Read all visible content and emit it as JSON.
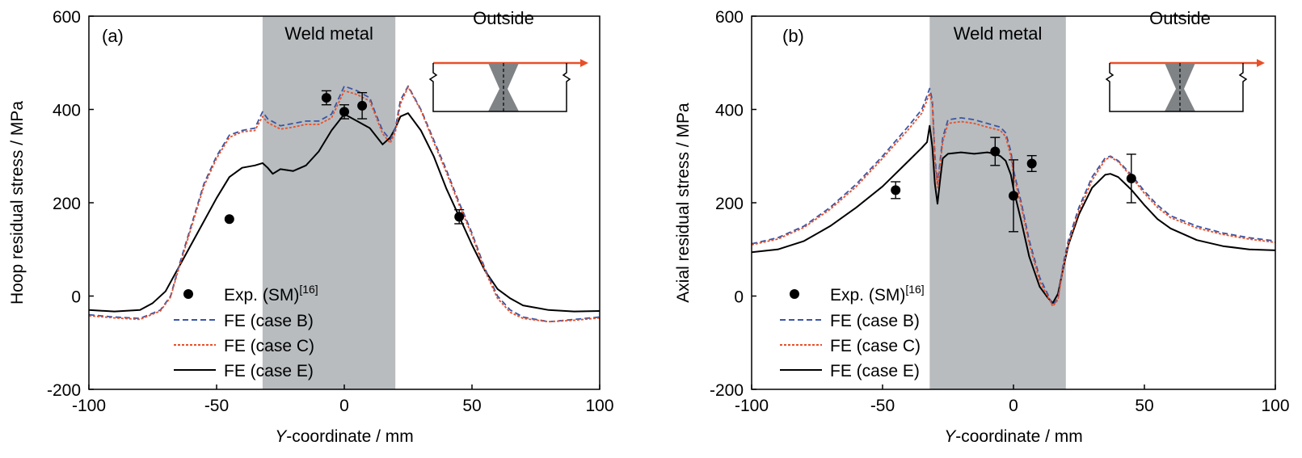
{
  "chart_data": [
    {
      "type": "line",
      "panel_label": "(a)",
      "ylabel": "Hoop residual stress / MPa",
      "xlabel_italic": "Y",
      "xlabel_rest": "-coordinate / mm",
      "xlim": [
        -100,
        100
      ],
      "ylim": [
        -200,
        600
      ],
      "xticks": [
        -100,
        -50,
        0,
        50,
        100
      ],
      "yticks": [
        -200,
        0,
        200,
        400,
        600
      ],
      "weld_region": {
        "label": "Weld metal",
        "x": [
          -32,
          20
        ]
      },
      "inset_label": "Outside",
      "legend": {
        "exp": "Exp. (SM)",
        "exp_ref": "[16]",
        "caseB": "FE (case B)",
        "caseC": "FE (case C)",
        "caseE": "FE (case E)"
      },
      "colors": {
        "caseB": "#3a55a4",
        "caseC": "#e8502a",
        "caseE": "#000000",
        "weld": "#b8bcbf"
      },
      "exp_points": [
        {
          "x": -45,
          "y": 165,
          "err": 0
        },
        {
          "x": -7,
          "y": 425,
          "err": 15
        },
        {
          "x": 0,
          "y": 395,
          "err": 15
        },
        {
          "x": 7,
          "y": 408,
          "err": 28
        },
        {
          "x": 45,
          "y": 170,
          "err": 15
        }
      ],
      "series": [
        {
          "name": "FE (case B)",
          "points": [
            [
              -100,
              -40
            ],
            [
              -90,
              -45
            ],
            [
              -80,
              -48
            ],
            [
              -72,
              -30
            ],
            [
              -68,
              0
            ],
            [
              -65,
              60
            ],
            [
              -60,
              150
            ],
            [
              -55,
              240
            ],
            [
              -50,
              300
            ],
            [
              -45,
              345
            ],
            [
              -40,
              355
            ],
            [
              -35,
              360
            ],
            [
              -32,
              395
            ],
            [
              -30,
              380
            ],
            [
              -25,
              365
            ],
            [
              -20,
              370
            ],
            [
              -15,
              375
            ],
            [
              -10,
              375
            ],
            [
              -5,
              390
            ],
            [
              0,
              450
            ],
            [
              5,
              440
            ],
            [
              10,
              425
            ],
            [
              12,
              395
            ],
            [
              15,
              355
            ],
            [
              18,
              335
            ],
            [
              20,
              360
            ],
            [
              22,
              420
            ],
            [
              25,
              450
            ],
            [
              30,
              400
            ],
            [
              35,
              335
            ],
            [
              40,
              270
            ],
            [
              45,
              200
            ],
            [
              50,
              135
            ],
            [
              55,
              60
            ],
            [
              60,
              0
            ],
            [
              65,
              -30
            ],
            [
              70,
              -45
            ],
            [
              80,
              -55
            ],
            [
              90,
              -50
            ],
            [
              100,
              -45
            ]
          ]
        },
        {
          "name": "FE (case C)",
          "points": [
            [
              -100,
              -42
            ],
            [
              -90,
              -47
            ],
            [
              -80,
              -50
            ],
            [
              -72,
              -32
            ],
            [
              -68,
              -2
            ],
            [
              -65,
              55
            ],
            [
              -60,
              145
            ],
            [
              -55,
              235
            ],
            [
              -50,
              295
            ],
            [
              -45,
              340
            ],
            [
              -40,
              352
            ],
            [
              -35,
              355
            ],
            [
              -32,
              385
            ],
            [
              -30,
              372
            ],
            [
              -25,
              358
            ],
            [
              -20,
              362
            ],
            [
              -15,
              368
            ],
            [
              -10,
              368
            ],
            [
              -5,
              382
            ],
            [
              0,
              440
            ],
            [
              5,
              432
            ],
            [
              10,
              418
            ],
            [
              12,
              390
            ],
            [
              15,
              348
            ],
            [
              18,
              328
            ],
            [
              20,
              352
            ],
            [
              22,
              412
            ],
            [
              25,
              448
            ],
            [
              30,
              398
            ],
            [
              35,
              330
            ],
            [
              40,
              265
            ],
            [
              45,
              195
            ],
            [
              50,
              130
            ],
            [
              55,
              55
            ],
            [
              60,
              -5
            ],
            [
              65,
              -35
            ],
            [
              70,
              -48
            ],
            [
              80,
              -55
            ],
            [
              90,
              -52
            ],
            [
              100,
              -47
            ]
          ]
        },
        {
          "name": "FE (case E)",
          "points": [
            [
              -100,
              -30
            ],
            [
              -90,
              -33
            ],
            [
              -80,
              -30
            ],
            [
              -75,
              -15
            ],
            [
              -70,
              10
            ],
            [
              -65,
              60
            ],
            [
              -60,
              110
            ],
            [
              -55,
              160
            ],
            [
              -50,
              210
            ],
            [
              -45,
              255
            ],
            [
              -40,
              275
            ],
            [
              -35,
              280
            ],
            [
              -32,
              285
            ],
            [
              -30,
              275
            ],
            [
              -28,
              262
            ],
            [
              -25,
              272
            ],
            [
              -20,
              268
            ],
            [
              -15,
              280
            ],
            [
              -10,
              310
            ],
            [
              -5,
              355
            ],
            [
              0,
              390
            ],
            [
              5,
              375
            ],
            [
              10,
              360
            ],
            [
              15,
              325
            ],
            [
              18,
              340
            ],
            [
              20,
              360
            ],
            [
              22,
              385
            ],
            [
              25,
              392
            ],
            [
              30,
              355
            ],
            [
              35,
              300
            ],
            [
              40,
              230
            ],
            [
              45,
              170
            ],
            [
              50,
              110
            ],
            [
              55,
              55
            ],
            [
              60,
              15
            ],
            [
              65,
              -5
            ],
            [
              70,
              -20
            ],
            [
              80,
              -30
            ],
            [
              90,
              -33
            ],
            [
              100,
              -32
            ]
          ]
        }
      ]
    },
    {
      "type": "line",
      "panel_label": "(b)",
      "ylabel": "Axial residual stress / MPa",
      "xlabel_italic": "Y",
      "xlabel_rest": "-coordinate / mm",
      "xlim": [
        -100,
        100
      ],
      "ylim": [
        -200,
        600
      ],
      "xticks": [
        -100,
        -50,
        0,
        50,
        100
      ],
      "yticks": [
        -200,
        0,
        200,
        400,
        600
      ],
      "weld_region": {
        "label": "Weld metal",
        "x": [
          -32,
          20
        ]
      },
      "inset_label": "Outside",
      "legend": {
        "exp": "Exp. (SM)",
        "exp_ref": "[16]",
        "caseB": "FE (case B)",
        "caseC": "FE (case C)",
        "caseE": "FE (case E)"
      },
      "colors": {
        "caseB": "#3a55a4",
        "caseC": "#e8502a",
        "caseE": "#000000",
        "weld": "#b8bcbf"
      },
      "exp_points": [
        {
          "x": -45,
          "y": 227,
          "err": 18
        },
        {
          "x": -7,
          "y": 310,
          "err": 30
        },
        {
          "x": 0,
          "y": 215,
          "err": 77
        },
        {
          "x": 7,
          "y": 284,
          "err": 17
        },
        {
          "x": 45,
          "y": 252,
          "err": 52
        }
      ],
      "series": [
        {
          "name": "FE (case B)",
          "points": [
            [
              -100,
              112
            ],
            [
              -90,
              125
            ],
            [
              -80,
              150
            ],
            [
              -70,
              190
            ],
            [
              -60,
              240
            ],
            [
              -50,
              300
            ],
            [
              -40,
              365
            ],
            [
              -35,
              400
            ],
            [
              -33,
              430
            ],
            [
              -32,
              445
            ],
            [
              -31,
              420
            ],
            [
              -30,
              300
            ],
            [
              -29,
              240
            ],
            [
              -27,
              340
            ],
            [
              -25,
              378
            ],
            [
              -20,
              382
            ],
            [
              -15,
              378
            ],
            [
              -10,
              370
            ],
            [
              -5,
              362
            ],
            [
              -3,
              350
            ],
            [
              -1,
              310
            ],
            [
              0,
              270
            ],
            [
              3,
              200
            ],
            [
              6,
              120
            ],
            [
              10,
              40
            ],
            [
              13,
              5
            ],
            [
              15,
              -20
            ],
            [
              17,
              -5
            ],
            [
              19,
              70
            ],
            [
              21,
              120
            ],
            [
              25,
              190
            ],
            [
              30,
              255
            ],
            [
              35,
              296
            ],
            [
              37,
              300
            ],
            [
              40,
              290
            ],
            [
              45,
              260
            ],
            [
              50,
              225
            ],
            [
              55,
              195
            ],
            [
              60,
              172
            ],
            [
              70,
              150
            ],
            [
              80,
              135
            ],
            [
              90,
              125
            ],
            [
              100,
              118
            ]
          ]
        },
        {
          "name": "FE (case C)",
          "points": [
            [
              -100,
              110
            ],
            [
              -90,
              122
            ],
            [
              -80,
              147
            ],
            [
              -70,
              186
            ],
            [
              -60,
              235
            ],
            [
              -50,
              295
            ],
            [
              -40,
              358
            ],
            [
              -35,
              392
            ],
            [
              -33,
              420
            ],
            [
              -32,
              435
            ],
            [
              -31,
              410
            ],
            [
              -30,
              290
            ],
            [
              -29,
              232
            ],
            [
              -27,
              330
            ],
            [
              -25,
              370
            ],
            [
              -20,
              374
            ],
            [
              -15,
              370
            ],
            [
              -10,
              362
            ],
            [
              -5,
              355
            ],
            [
              -3,
              342
            ],
            [
              -1,
              300
            ],
            [
              0,
              262
            ],
            [
              3,
              192
            ],
            [
              6,
              112
            ],
            [
              10,
              32
            ],
            [
              13,
              0
            ],
            [
              15,
              -22
            ],
            [
              17,
              -8
            ],
            [
              19,
              62
            ],
            [
              21,
              112
            ],
            [
              25,
              182
            ],
            [
              30,
              248
            ],
            [
              35,
              292
            ],
            [
              37,
              298
            ],
            [
              40,
              288
            ],
            [
              45,
              256
            ],
            [
              50,
              220
            ],
            [
              55,
              190
            ],
            [
              60,
              168
            ],
            [
              70,
              146
            ],
            [
              80,
              132
            ],
            [
              90,
              122
            ],
            [
              100,
              115
            ]
          ]
        },
        {
          "name": "FE (case E)",
          "points": [
            [
              -100,
              94
            ],
            [
              -90,
              100
            ],
            [
              -80,
              118
            ],
            [
              -70,
              150
            ],
            [
              -60,
              190
            ],
            [
              -50,
              235
            ],
            [
              -40,
              290
            ],
            [
              -35,
              318
            ],
            [
              -33,
              330
            ],
            [
              -32,
              365
            ],
            [
              -31,
              320
            ],
            [
              -30,
              240
            ],
            [
              -29,
              198
            ],
            [
              -28,
              250
            ],
            [
              -27,
              295
            ],
            [
              -25,
              305
            ],
            [
              -20,
              308
            ],
            [
              -15,
              305
            ],
            [
              -10,
              308
            ],
            [
              -7,
              305
            ],
            [
              -5,
              300
            ],
            [
              -3,
              290
            ],
            [
              -1,
              260
            ],
            [
              0,
              230
            ],
            [
              3,
              160
            ],
            [
              6,
              85
            ],
            [
              10,
              20
            ],
            [
              13,
              -3
            ],
            [
              15,
              -15
            ],
            [
              17,
              5
            ],
            [
              19,
              60
            ],
            [
              21,
              110
            ],
            [
              25,
              175
            ],
            [
              30,
              232
            ],
            [
              35,
              260
            ],
            [
              37,
              262
            ],
            [
              40,
              255
            ],
            [
              45,
              228
            ],
            [
              50,
              195
            ],
            [
              55,
              165
            ],
            [
              60,
              145
            ],
            [
              70,
              120
            ],
            [
              80,
              107
            ],
            [
              90,
              100
            ],
            [
              100,
              98
            ]
          ]
        }
      ]
    }
  ]
}
